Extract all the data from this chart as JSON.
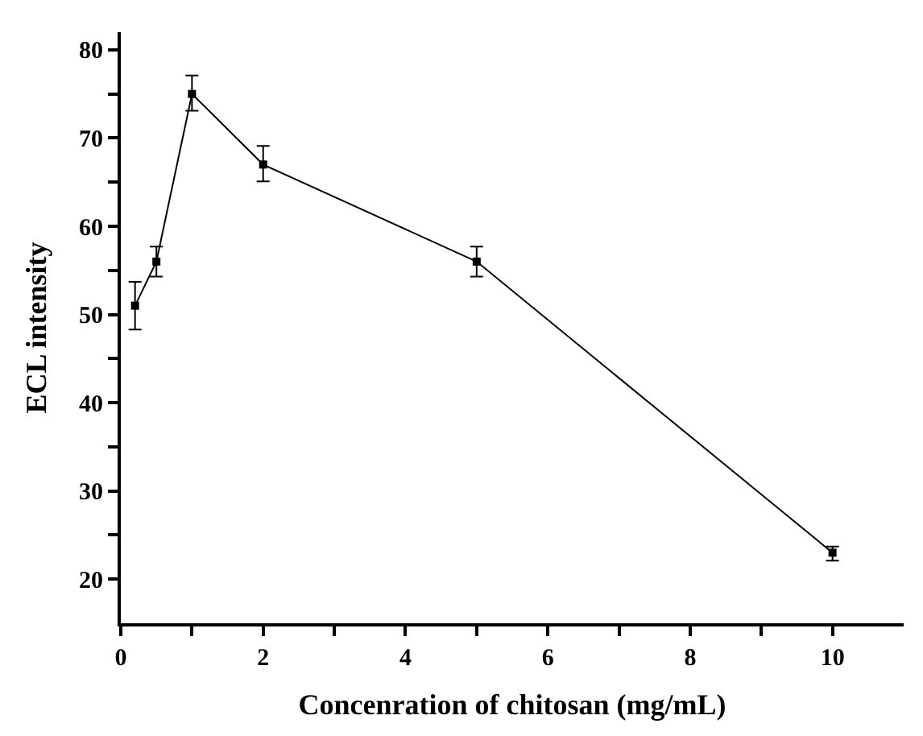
{
  "chart_data": {
    "type": "line",
    "xlabel": "Concenration of chitosan (mg/mL)",
    "ylabel": "ECL intensity",
    "x": [
      0.2,
      0.5,
      1,
      2,
      5,
      10
    ],
    "series": [
      {
        "color": "#000000",
        "values": [
          51,
          56,
          75,
          67,
          56,
          23
        ],
        "errors": [
          [
            48.3,
            53.7
          ],
          [
            54.3,
            57.7
          ],
          [
            73.1,
            77.1
          ],
          [
            65.1,
            69.1
          ],
          [
            54.3,
            57.7
          ],
          [
            22.1,
            23.7
          ]
        ]
      }
    ],
    "xlim": [
      0,
      11
    ],
    "ylim": [
      15,
      82
    ],
    "xticks": [
      0,
      {
        "value": 1,
        "label": null
      },
      2,
      {
        "value": 3,
        "label": null
      },
      4,
      {
        "value": 5,
        "label": null
      },
      6,
      {
        "value": 7,
        "label": null
      },
      8,
      {
        "value": 9,
        "label": null
      },
      10
    ],
    "yticks": [
      20,
      {
        "value": 25,
        "label": null
      },
      30,
      {
        "value": 35,
        "label": null
      },
      40,
      {
        "value": 45,
        "label": null
      },
      50,
      {
        "value": 55,
        "label": null
      },
      60,
      {
        "value": 65,
        "label": null
      },
      70,
      {
        "value": 75,
        "label": null
      },
      80
    ],
    "marker": "square",
    "line_style": "solid"
  }
}
